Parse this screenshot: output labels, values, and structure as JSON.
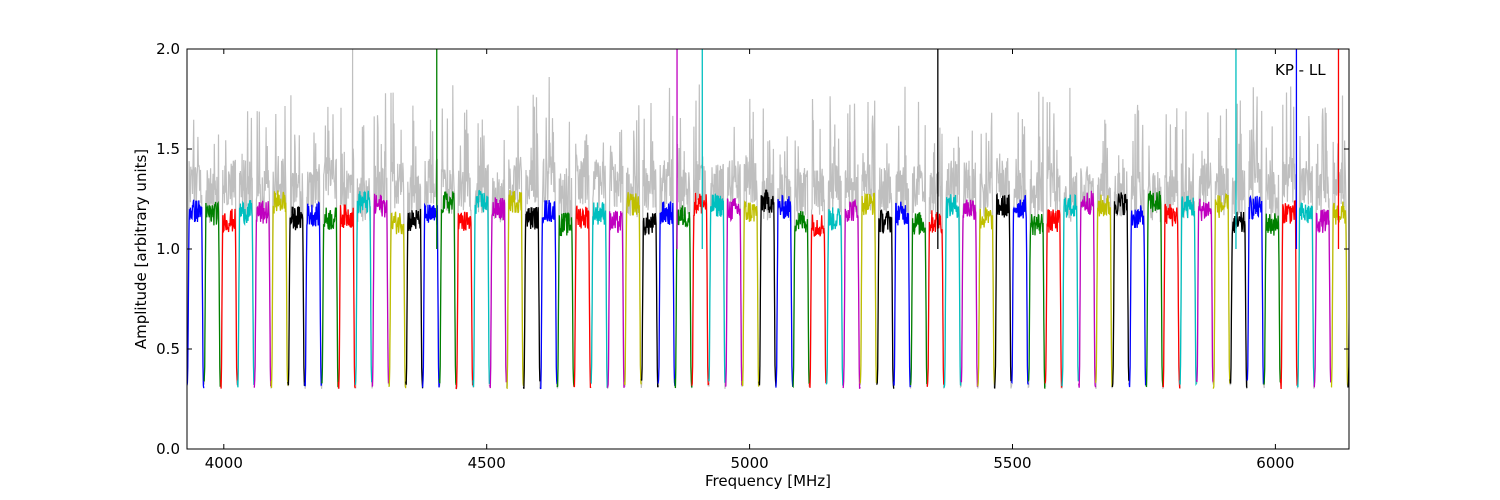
{
  "chart_data": {
    "type": "line",
    "title": "",
    "xlabel": "Frequency [MHz]",
    "ylabel": "Amplitude [arbitrary units]",
    "annotation": "KP - LL",
    "xlim": [
      3930,
      6140
    ],
    "ylim": [
      0.0,
      2.0
    ],
    "xticks": [
      4000,
      4500,
      5000,
      5500,
      6000
    ],
    "yticks": [
      "0.0",
      "0.5",
      "1.0",
      "1.5",
      "2.0"
    ],
    "grid": false,
    "legend": "none",
    "background_trace": {
      "color": "#bfbfbf",
      "description": "gray envelope of all channels"
    },
    "colors": [
      "#0000ff",
      "#008000",
      "#ff0000",
      "#00bfbf",
      "#bf00bf",
      "#bfbf00",
      "#000000"
    ],
    "band_width_mhz": 32,
    "band_start_mhz": 3930,
    "band_end_mhz": 6140,
    "typical_plateau": 1.2,
    "typical_edge_min": 0.3,
    "spikes": [
      {
        "x": 4245,
        "y": 2.0,
        "series": "gray"
      },
      {
        "x": 4405,
        "y": 2.0,
        "series": "green"
      },
      {
        "x": 4862,
        "y": 2.0,
        "series": "magenta"
      },
      {
        "x": 4910,
        "y": 2.0,
        "series": "cyan"
      },
      {
        "x": 5358,
        "y": 2.0,
        "series": "black"
      },
      {
        "x": 5925,
        "y": 2.0,
        "series": "cyan"
      },
      {
        "x": 6040,
        "y": 2.0,
        "series": "blue"
      },
      {
        "x": 6120,
        "y": 2.0,
        "series": "red"
      }
    ]
  }
}
